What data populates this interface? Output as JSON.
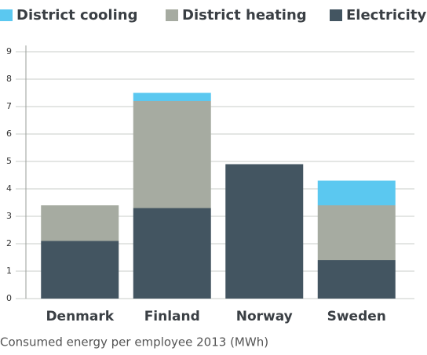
{
  "chart_data": {
    "type": "stacked_bar",
    "caption": "Consumed energy per employee 2013 (MWh)",
    "categories": [
      "Denmark",
      "Finland",
      "Norway",
      "Sweden"
    ],
    "series": [
      {
        "name": "Electricity",
        "color": "#435561",
        "values": [
          2.1,
          3.3,
          4.9,
          1.4
        ]
      },
      {
        "name": "District heating",
        "color": "#a6aba1",
        "values": [
          1.3,
          3.9,
          0,
          2.0
        ]
      },
      {
        "name": "District cooling",
        "color": "#5bc8f0",
        "values": [
          0,
          0.3,
          0,
          0.9
        ]
      }
    ],
    "legend_order": [
      2,
      1,
      0
    ],
    "ylim": [
      0,
      9
    ],
    "yticks": [
      0,
      1,
      2,
      3,
      4,
      5,
      6,
      7,
      8,
      9
    ],
    "grid": true
  }
}
